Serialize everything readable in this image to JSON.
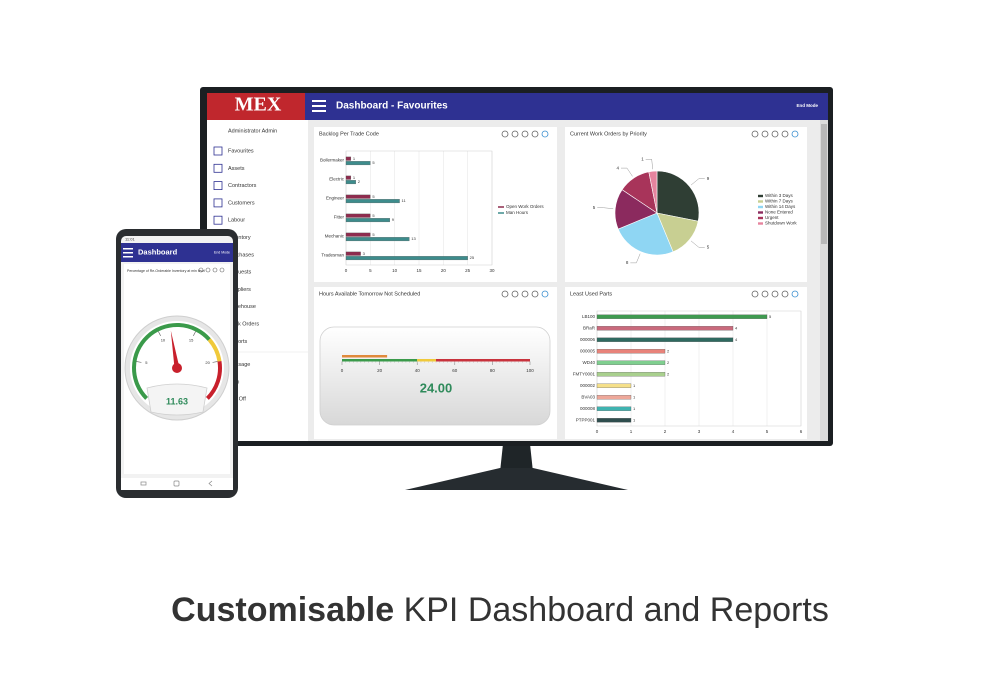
{
  "caption": {
    "bold": "Customisable",
    "rest": " KPI Dashboard and Reports"
  },
  "monitor": {
    "logo": "MEX",
    "title": "Dashboard - Favourites",
    "mode": "End Mode",
    "user": "Administrator Admin",
    "menu": [
      "Favourites",
      "Assets",
      "Contractors",
      "Customers",
      "Labour",
      "Inventory",
      "Purchases",
      "Requests",
      "Suppliers",
      "Warehouse",
      "Work Orders",
      "Reports",
      "Message",
      "Help",
      "Log Off"
    ]
  },
  "phone": {
    "time": "11:01",
    "title": "Dashboard",
    "mode": "End Mode"
  },
  "chart_data": [
    {
      "type": "bar",
      "title": "Backlog Per Trade Code",
      "categories": [
        "Boilermaker",
        "Electric",
        "Engineer",
        "Fitter",
        "Mechanic",
        "Tradesman"
      ],
      "series": [
        {
          "name": "Open Work Orders",
          "color": "#8e2c4e",
          "values": [
            1,
            1,
            5,
            5,
            5,
            3
          ]
        },
        {
          "name": "Man Hours",
          "color": "#3d8c8c",
          "values": [
            5,
            2,
            11,
            9,
            13,
            25
          ]
        }
      ],
      "xlim": [
        0,
        30
      ],
      "xticks": [
        0,
        5,
        10,
        15,
        20,
        25,
        30
      ],
      "grid": true
    },
    {
      "type": "pie",
      "title": "Current Work Orders by Priority",
      "categories": [
        "Within 3 Days",
        "Within 7 Days",
        "Within 14 Days",
        "None Entered",
        "Urgent",
        "Shutdown Work"
      ],
      "values": [
        9,
        5,
        8,
        5,
        4,
        1
      ],
      "colors": [
        "#2f3e34",
        "#c8cf92",
        "#8fd6f3",
        "#8b2a5e",
        "#a8345a",
        "#e6849e"
      ],
      "legend": "right"
    },
    {
      "type": "linear-gauge",
      "title": "Hours Available Tomorrow Not Scheduled",
      "value": 24,
      "value_label": "24.00",
      "color": "#e08a3c",
      "xlim": [
        0,
        100
      ],
      "xticks": [
        0,
        20,
        40,
        60,
        80,
        100
      ],
      "bands": [
        {
          "from": 0,
          "to": 40,
          "color": "#3a9a4a"
        },
        {
          "from": 40,
          "to": 50,
          "color": "#f0c93a"
        },
        {
          "from": 50,
          "to": 100,
          "color": "#c8323c"
        }
      ]
    },
    {
      "type": "bar",
      "title": "Least Used Parts",
      "categories": [
        "LB100",
        "BRaR",
        "000006",
        "000005",
        "WD40",
        "FMTY0001",
        "000002",
        "BVA03",
        "000008",
        "PTPP001"
      ],
      "values": [
        5,
        4,
        4,
        2,
        2,
        2,
        1,
        1,
        1,
        1
      ],
      "colors": [
        "#3f9a50",
        "#c96a7c",
        "#2f6a60",
        "#e8837a",
        "#7fcf8f",
        "#a9d08e",
        "#f5e08a",
        "#eea89a",
        "#3fb3b0",
        "#2f4e4e"
      ],
      "xlim": [
        0,
        6
      ],
      "xticks": [
        0,
        1,
        2,
        3,
        4,
        5,
        6
      ],
      "grid": true
    },
    {
      "type": "radial-gauge",
      "title": "Percentage of Re-Orderable Inventory at min level",
      "value": 11.63,
      "color": "#c8202c",
      "ylim": [
        0,
        25
      ],
      "yticks": [
        0,
        5,
        10,
        15,
        20,
        25
      ],
      "bands": [
        {
          "from": 0,
          "to": 17,
          "color": "#3a9a4a"
        },
        {
          "from": 17,
          "to": 20,
          "color": "#f0c93a"
        },
        {
          "from": 20,
          "to": 25,
          "color": "#c8202c"
        }
      ]
    }
  ]
}
